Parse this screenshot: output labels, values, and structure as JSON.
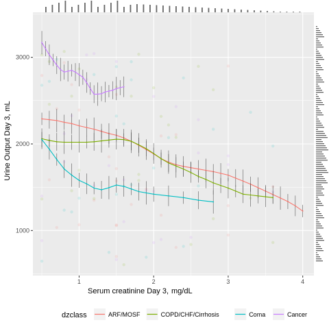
{
  "chart_data": {
    "type": "line",
    "xlabel": "Serum creatinine Day 3,",
    "xlabel_unit": "mg/dL",
    "ylabel": "Urine Output Day 3,",
    "ylabel_unit": "mL",
    "xlim": [
      0.38,
      4.15
    ],
    "ylim": [
      480,
      3520
    ],
    "x_ticks": [
      1,
      2,
      3,
      4
    ],
    "y_ticks": [
      1000,
      2000,
      3000
    ],
    "grid": true,
    "legend_title": "dzclass",
    "legend_position": "bottom",
    "series": [
      {
        "name": "ARF/MOSF",
        "color": "#F8766D",
        "x": [
          0.5,
          0.6,
          0.7,
          0.8,
          0.9,
          1.0,
          1.1,
          1.2,
          1.3,
          1.4,
          1.5,
          1.6,
          1.7,
          1.8,
          1.9,
          2.0,
          2.1,
          2.2,
          2.3,
          2.4,
          2.5,
          2.6,
          2.7,
          2.8,
          2.9,
          3.0,
          3.1,
          3.2,
          3.3,
          3.4,
          3.5,
          3.6,
          3.7,
          3.8,
          3.9,
          4.0
        ],
        "y": [
          2290,
          2280,
          2270,
          2250,
          2235,
          2210,
          2190,
          2170,
          2145,
          2120,
          2100,
          2070,
          2030,
          1985,
          1935,
          1885,
          1830,
          1790,
          1760,
          1740,
          1725,
          1710,
          1695,
          1680,
          1660,
          1640,
          1605,
          1570,
          1535,
          1495,
          1455,
          1415,
          1375,
          1335,
          1285,
          1225
        ]
      },
      {
        "name": "COPD/CHF/Cirrhosis",
        "color": "#7CAE00",
        "x": [
          0.5,
          0.6,
          0.7,
          0.8,
          0.9,
          1.0,
          1.1,
          1.2,
          1.3,
          1.4,
          1.5,
          1.6,
          1.7,
          1.8,
          1.9,
          2.0,
          2.1,
          2.2,
          2.3,
          2.4,
          2.5,
          2.6,
          2.7,
          2.8,
          2.9,
          3.0,
          3.1,
          3.2,
          3.3,
          3.4,
          3.5,
          3.6
        ],
        "y": [
          2060,
          2040,
          2025,
          2020,
          2020,
          2020,
          2020,
          2025,
          2035,
          2045,
          2055,
          2050,
          2030,
          1990,
          1945,
          1890,
          1830,
          1780,
          1745,
          1710,
          1670,
          1625,
          1590,
          1550,
          1520,
          1490,
          1455,
          1420,
          1410,
          1400,
          1390,
          1380
        ]
      },
      {
        "name": "Coma",
        "color": "#00BFC4",
        "x": [
          0.5,
          0.6,
          0.7,
          0.8,
          0.9,
          1.0,
          1.1,
          1.2,
          1.3,
          1.4,
          1.5,
          1.6,
          1.7,
          1.8,
          1.9,
          2.0,
          2.2,
          2.4,
          2.6,
          2.8
        ],
        "y": [
          2050,
          1940,
          1820,
          1710,
          1640,
          1580,
          1540,
          1490,
          1470,
          1495,
          1525,
          1510,
          1480,
          1450,
          1435,
          1420,
          1400,
          1380,
          1350,
          1330
        ]
      },
      {
        "name": "Cancer",
        "color": "#C77CFF",
        "x": [
          0.5,
          0.55,
          0.6,
          0.65,
          0.7,
          0.75,
          0.8,
          0.85,
          0.9,
          0.95,
          1.0,
          1.05,
          1.1,
          1.15,
          1.2,
          1.25,
          1.3,
          1.35,
          1.4,
          1.45,
          1.5,
          1.55,
          1.6
        ],
        "y": [
          3170,
          3100,
          3030,
          2970,
          2910,
          2860,
          2830,
          2840,
          2850,
          2830,
          2800,
          2770,
          2710,
          2640,
          2575,
          2575,
          2580,
          2600,
          2610,
          2620,
          2640,
          2650,
          2660
        ]
      }
    ]
  }
}
